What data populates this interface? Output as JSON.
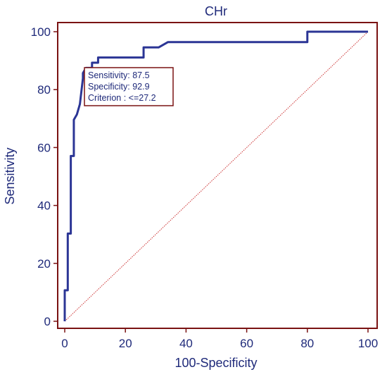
{
  "chart_data": {
    "type": "line",
    "title": "CHr",
    "xlabel": "100-Specificity",
    "ylabel": "Sensitivity",
    "xlim": [
      0,
      100
    ],
    "ylim": [
      0,
      100
    ],
    "xticks": [
      0,
      20,
      40,
      60,
      80,
      100
    ],
    "yticks": [
      0,
      20,
      40,
      60,
      80,
      100
    ],
    "grid": false,
    "series": [
      {
        "kind": "roc",
        "x": [
          0,
          0,
          1,
          1,
          2,
          2,
          3,
          3,
          4,
          5,
          6,
          6,
          7,
          9,
          9,
          11,
          11,
          26,
          26,
          31,
          34,
          80,
          80,
          100
        ],
        "y": [
          0,
          10.7,
          10.7,
          30.3,
          30.3,
          57.1,
          57.1,
          69.6,
          71.4,
          75,
          83.9,
          85.7,
          87.5,
          87.5,
          89.3,
          89.3,
          91.1,
          91.1,
          94.6,
          94.6,
          96.4,
          96.4,
          100,
          100
        ]
      },
      {
        "kind": "reference",
        "x": [
          0,
          100
        ],
        "y": [
          0,
          100
        ]
      }
    ],
    "annotation": {
      "lines": [
        "Sensitivity: 87.5",
        "Specificity: 92.9",
        "Criterion : <=27.2"
      ]
    },
    "colors": {
      "roc": "#2b3595",
      "reference": "#cc3333",
      "frame": "#7a1212",
      "text": "#1f2a7a"
    }
  }
}
